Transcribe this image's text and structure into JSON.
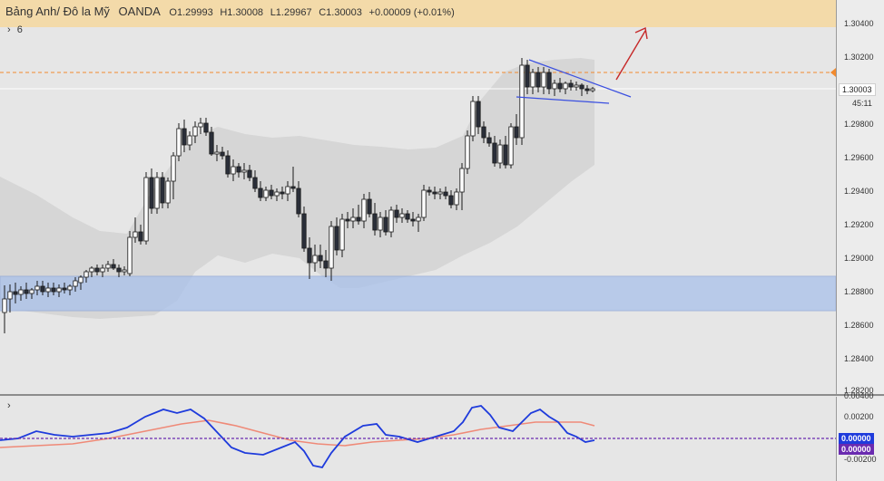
{
  "header": {
    "symbol": "Bảng Anh/ Đô la Mỹ",
    "broker": "OANDA",
    "open": "O1.29993",
    "high": "H1.30008",
    "low": "L1.29967",
    "close": "C1.30003",
    "change": "+0.00009 (+0.01%)"
  },
  "indicators_toggle": {
    "arrow": "›",
    "count": "6"
  },
  "oscillator_toggle": "›",
  "price_axis": {
    "ticks": [
      "1.30400",
      "1.30200",
      "1.29800",
      "1.29600",
      "1.29400",
      "1.29200",
      "1.29000",
      "1.28800",
      "1.28600",
      "1.28400",
      "1.28200"
    ],
    "current_price": "1.30003",
    "countdown": "45:11"
  },
  "osc_axis": {
    "ticks": [
      "0.00400",
      "0.00200",
      "-0.00200"
    ],
    "value1": "0.00000",
    "value2": "0.00000"
  },
  "colors": {
    "bull_candle": "#ffffff",
    "bear_candle": "#2a2e39",
    "resistance_zone": "#f5d79e",
    "support_zone": "#b0c6ea",
    "bollinger_band": "#d2d2d2",
    "dashed_level": "#f28a2e",
    "trend_arrow": "#c62828",
    "triangle_lines": "#3a4fe0",
    "osc_fast": "#1e3bdc",
    "osc_slow": "#ef8a78",
    "osc_zero": "#6a2bb0"
  }
}
